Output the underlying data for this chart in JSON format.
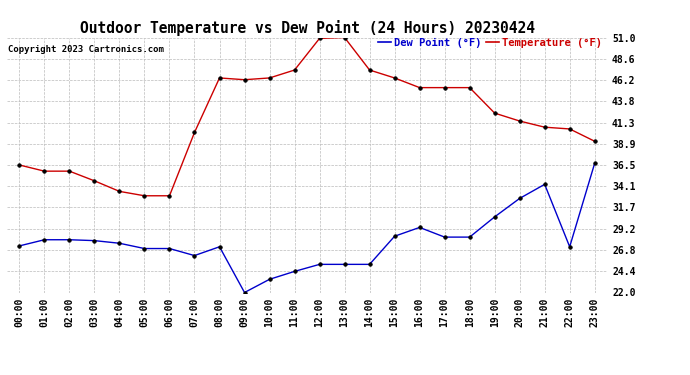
{
  "title": "Outdoor Temperature vs Dew Point (24 Hours) 20230424",
  "copyright": "Copyright 2023 Cartronics.com",
  "legend_dew": "Dew Point (°F)",
  "legend_temp": "Temperature (°F)",
  "x_labels": [
    "00:00",
    "01:00",
    "02:00",
    "03:00",
    "04:00",
    "05:00",
    "06:00",
    "07:00",
    "08:00",
    "09:00",
    "10:00",
    "11:00",
    "12:00",
    "13:00",
    "14:00",
    "15:00",
    "16:00",
    "17:00",
    "18:00",
    "19:00",
    "20:00",
    "21:00",
    "22:00",
    "23:00"
  ],
  "temperature": [
    36.5,
    35.8,
    35.8,
    34.7,
    33.5,
    33.0,
    33.0,
    40.2,
    46.4,
    46.2,
    46.4,
    47.3,
    50.9,
    51.0,
    47.3,
    46.4,
    45.3,
    45.3,
    45.3,
    42.4,
    41.5,
    40.8,
    40.6,
    39.2
  ],
  "dew_point": [
    27.3,
    28.0,
    28.0,
    27.9,
    27.6,
    27.0,
    27.0,
    26.2,
    27.2,
    22.0,
    23.5,
    24.4,
    25.2,
    25.2,
    25.2,
    28.4,
    29.4,
    28.3,
    28.3,
    30.6,
    32.7,
    34.3,
    27.2,
    36.7
  ],
  "temp_color": "#cc0000",
  "dew_color": "#0000cc",
  "marker_color": "#000000",
  "ylim_min": 22.0,
  "ylim_max": 51.0,
  "ytick_labels": [
    "22.0",
    "24.4",
    "26.8",
    "29.2",
    "31.7",
    "34.1",
    "36.5",
    "38.9",
    "41.3",
    "43.8",
    "46.2",
    "48.6",
    "51.0"
  ],
  "ytick_vals": [
    22.0,
    24.4,
    26.8,
    29.2,
    31.7,
    34.1,
    36.5,
    38.9,
    41.3,
    43.8,
    46.2,
    48.6,
    51.0
  ],
  "background_color": "#ffffff",
  "grid_color": "#bbbbbb",
  "title_fontsize": 10.5,
  "tick_fontsize": 7,
  "legend_fontsize": 7.5,
  "copyright_fontsize": 6.5
}
